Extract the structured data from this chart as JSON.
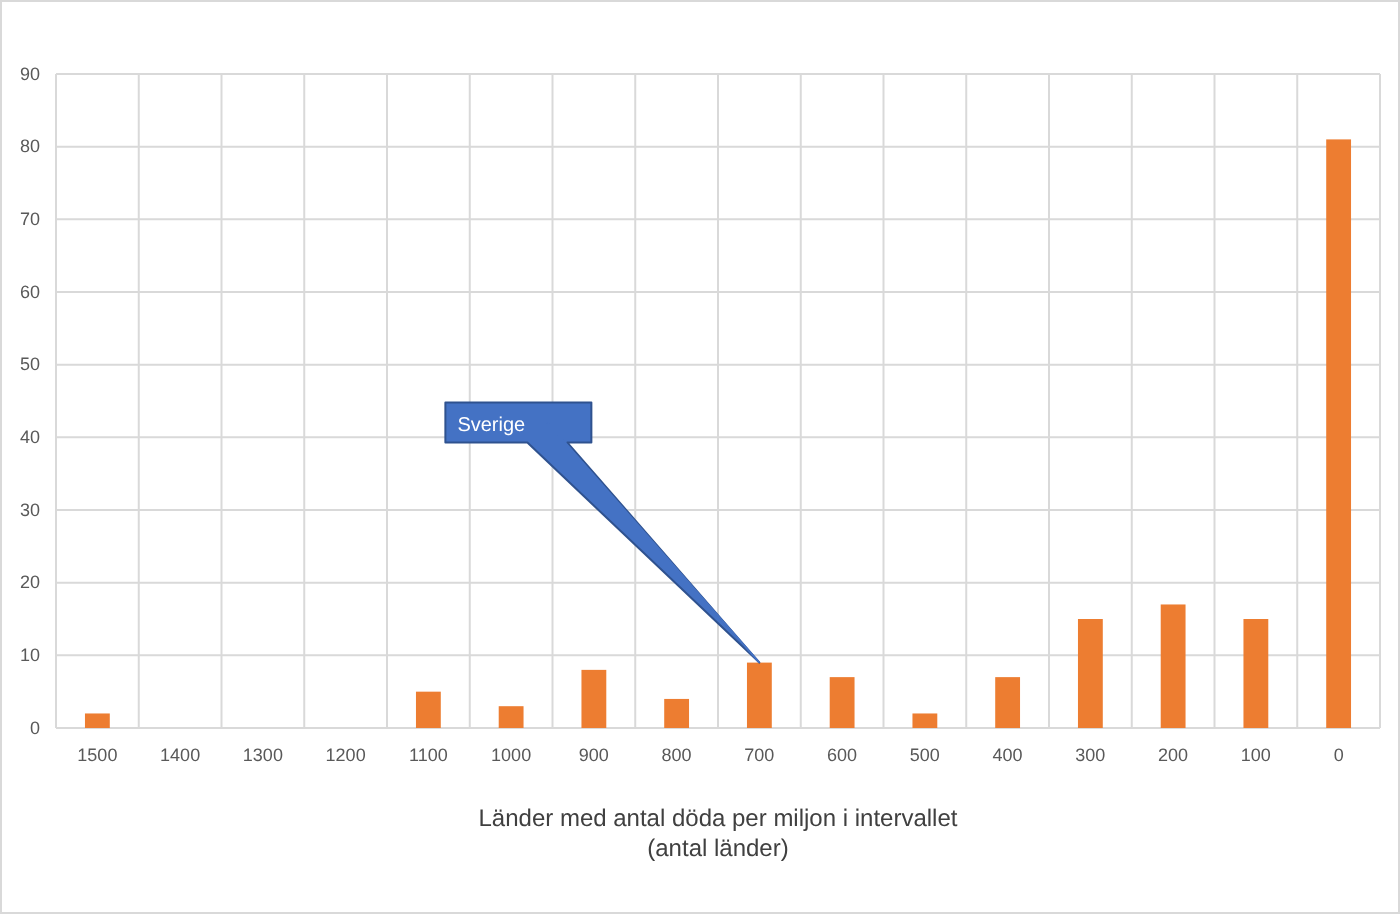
{
  "chart_data": {
    "type": "bar",
    "xlabel": "Länder med antal döda per miljon i intervallet\n(antal länder)",
    "categories": [
      "1500",
      "1400",
      "1300",
      "1200",
      "1100",
      "1000",
      "900",
      "800",
      "700",
      "600",
      "500",
      "400",
      "300",
      "200",
      "100",
      "0"
    ],
    "values": [
      2,
      0,
      0,
      0,
      5,
      3,
      8,
      4,
      9,
      7,
      2,
      7,
      15,
      17,
      15,
      81
    ],
    "color": "#ed7d31",
    "ylim": [
      0,
      90
    ],
    "yticks": [
      0,
      10,
      20,
      30,
      40,
      50,
      60,
      70,
      80,
      90
    ],
    "grid": true,
    "annotations": [
      {
        "text": "Sverige",
        "x": "700",
        "y": 9
      }
    ]
  }
}
